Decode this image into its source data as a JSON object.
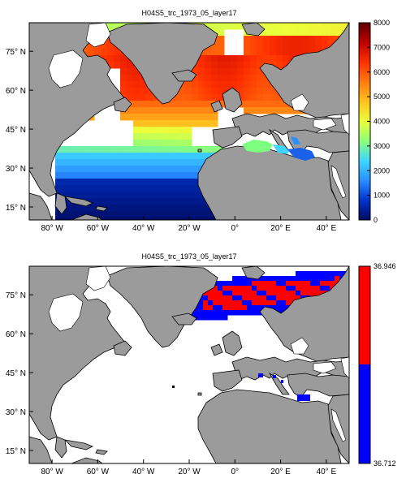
{
  "panels": [
    {
      "title": "H04S5_trc_1973_05_layer17",
      "colorbar": {
        "type": "continuous",
        "labels": [
          "8000",
          "7000",
          "6000",
          "5000",
          "4000",
          "3000",
          "2000",
          "1000",
          "0"
        ],
        "values": [
          8000,
          7000,
          6000,
          5000,
          4000,
          3000,
          2000,
          1000,
          0
        ],
        "range": [
          0,
          8000
        ]
      }
    },
    {
      "title": "H04S5_trc_1973_05_layer17",
      "colorbar": {
        "type": "binary",
        "max_label": "36.946",
        "min_label": "36.712",
        "colors": [
          "#ff0000",
          "#0000ff"
        ]
      }
    }
  ],
  "axes": {
    "lat_labels": [
      "75° N",
      "60° N",
      "45° N",
      "30° N",
      "15° N"
    ],
    "lat_values": [
      75,
      60,
      45,
      30,
      15
    ],
    "lon_labels": [
      "80° W",
      "60° W",
      "40° W",
      "20° W",
      "0°",
      "20° E",
      "40° E"
    ],
    "lon_values": [
      -80,
      -60,
      -40,
      -20,
      0,
      20,
      40
    ],
    "lon_range": [
      -90,
      50
    ],
    "lat_range": [
      10,
      86
    ]
  },
  "colors": {
    "land": "#9b9b9b",
    "ocean_nodata": "#ffffff",
    "colormap": [
      "#000a5f",
      "#0033cc",
      "#2a8fff",
      "#40d6ff",
      "#8cff7a",
      "#ecff3a",
      "#ffc21f",
      "#ff7a10",
      "#ff3000",
      "#c00000",
      "#5a0000"
    ]
  }
}
